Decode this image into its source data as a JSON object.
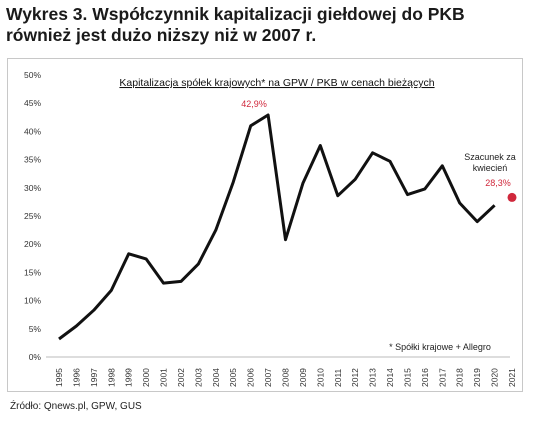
{
  "header": {
    "title_line1": "Wykres 3. Współczynnik kapitalizacji giełdowej do PKB",
    "title_line2": "również jest dużo niższy niż w 2007 r."
  },
  "source": "Źródło: Qnews.pl, GPW, GUS",
  "colors": {
    "line": "#111111",
    "highlight": "#d0283c"
  },
  "chart_data": {
    "type": "line",
    "title": "Kapitalizacja spółek krajowych* na GPW / PKB w cenach bieżących",
    "xlabel": "",
    "ylabel": "",
    "x": [
      "1995",
      "1996",
      "1997",
      "1998",
      "1999",
      "2000",
      "2001",
      "2002",
      "2003",
      "2004",
      "2005",
      "2006",
      "2007",
      "2008",
      "2009",
      "2010",
      "2011",
      "2012",
      "2013",
      "2014",
      "2015",
      "2016",
      "2017",
      "2018",
      "2019",
      "2020",
      "2021"
    ],
    "series": [
      {
        "values": [
          3.2,
          5.5,
          8.3,
          11.8,
          18.3,
          17.4,
          13.1,
          13.4,
          16.5,
          22.5,
          31.0,
          41.0,
          42.9,
          20.8,
          30.8,
          37.5,
          28.6,
          31.5,
          36.2,
          34.7,
          28.8,
          29.8,
          33.9,
          27.3,
          24.0,
          26.9,
          null
        ]
      }
    ],
    "yticks": [
      "0%",
      "5%",
      "10%",
      "15%",
      "20%",
      "25%",
      "30%",
      "35%",
      "40%",
      "45%",
      "50%"
    ],
    "ylim": [
      0,
      50
    ],
    "grid": false,
    "annotations": {
      "peak_label": "42,9%",
      "peak_x": "2007",
      "peak_value": 42.9,
      "estimate_label": "Szacunek za kwiecień",
      "estimate_line1": "Szacunek za",
      "estimate_line2": "kwiecień",
      "estimate_value_label": "28,3%",
      "estimate_x": "2021",
      "estimate_value": 28.3,
      "footnote": "* Spółki krajowe + Allegro"
    }
  }
}
